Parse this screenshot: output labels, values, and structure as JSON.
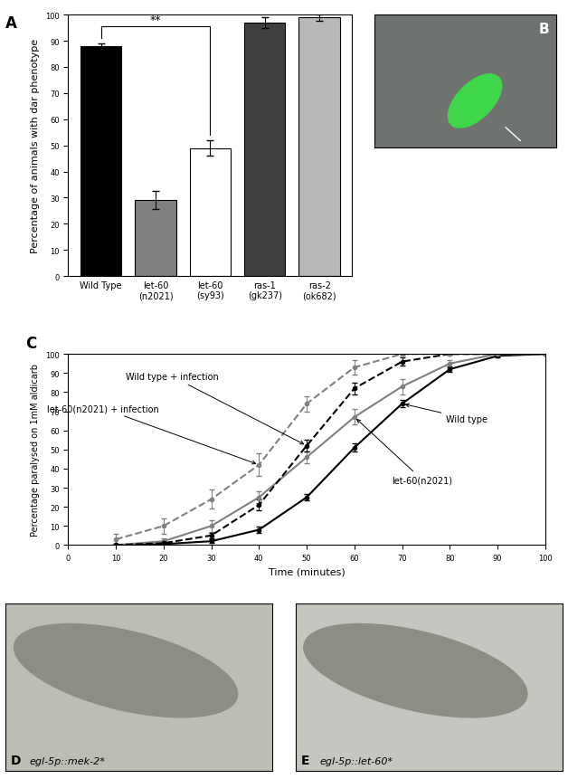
{
  "chart_data": [
    {
      "type": "bar",
      "title": "A",
      "categories": [
        "Wild Type",
        "let-60\n(n2021)",
        "let-60\n(sy93)",
        "ras-1\n(gk237)",
        "ras-2\n(ok682)"
      ],
      "values": [
        88,
        29,
        49,
        97,
        99
      ],
      "errors": [
        1,
        3.5,
        3,
        2,
        1.2
      ],
      "colors": [
        "#000000",
        "#808080",
        "#ffffff",
        "#404040",
        "#b8b8b8"
      ],
      "y_label": "Percentage of animals with dar phenotype",
      "annotations": [
        {
          "text": "**",
          "categories": [
            "Wild Type",
            "let-60\n(sy93)"
          ]
        }
      ],
      "ylim": [
        0,
        100
      ],
      "yticks": [
        0,
        10,
        20,
        30,
        40,
        50,
        60,
        70,
        80,
        90,
        100
      ]
    },
    {
      "type": "line",
      "title": "C",
      "x": [
        10,
        20,
        30,
        40,
        50,
        60,
        70,
        80,
        90,
        100
      ],
      "x_label": "Time (minutes)",
      "y_label": "Percentage paralysed on 1mM aldicarb",
      "series": [
        {
          "name": "Wild type",
          "color": "#000000",
          "line_style": "solid",
          "marker": "o",
          "values": [
            0,
            0.5,
            2,
            8,
            25,
            51,
            74,
            92,
            99,
            100
          ],
          "errors": [
            0,
            0.5,
            1,
            1.5,
            1.5,
            2,
            2,
            1.5,
            1,
            0
          ]
        },
        {
          "name": "let-60(n2021)",
          "color": "#808080",
          "line_style": "solid",
          "marker": "o",
          "values": [
            0,
            2,
            10,
            25,
            46,
            67,
            83,
            95,
            100,
            100
          ],
          "errors": [
            0.5,
            1.5,
            3,
            3,
            3,
            4,
            4,
            2,
            0.5,
            0
          ]
        },
        {
          "name": "Wild type + infection",
          "color": "#000000",
          "line_style": "dashed",
          "marker": "o",
          "values": [
            0,
            1,
            5,
            21,
            52,
            82,
            96,
            100,
            100,
            100
          ],
          "errors": [
            0,
            0.5,
            1.5,
            3,
            3,
            3,
            2,
            0.5,
            0,
            0
          ]
        },
        {
          "name": "let-60(n2021) + infection",
          "color": "#808080",
          "line_style": "dashed",
          "marker": "o",
          "values": [
            3,
            10,
            24,
            42,
            74,
            93,
            100,
            100,
            100,
            100
          ],
          "errors": [
            3,
            4,
            5,
            6,
            4,
            4,
            1,
            0.5,
            0,
            0
          ]
        }
      ],
      "xlim": [
        0,
        100
      ],
      "xticks": [
        0,
        10,
        20,
        30,
        40,
        50,
        60,
        70,
        80,
        90,
        100
      ],
      "ylim": [
        0,
        100
      ],
      "yticks": [
        0,
        10,
        20,
        30,
        40,
        50,
        60,
        70,
        80,
        90,
        100
      ]
    }
  ],
  "images": [
    {
      "title": "B"
    },
    {
      "title": "D",
      "caption": "egl-5p::mek-2*"
    },
    {
      "title": "E",
      "caption": "egl-5p::let-60*"
    }
  ]
}
